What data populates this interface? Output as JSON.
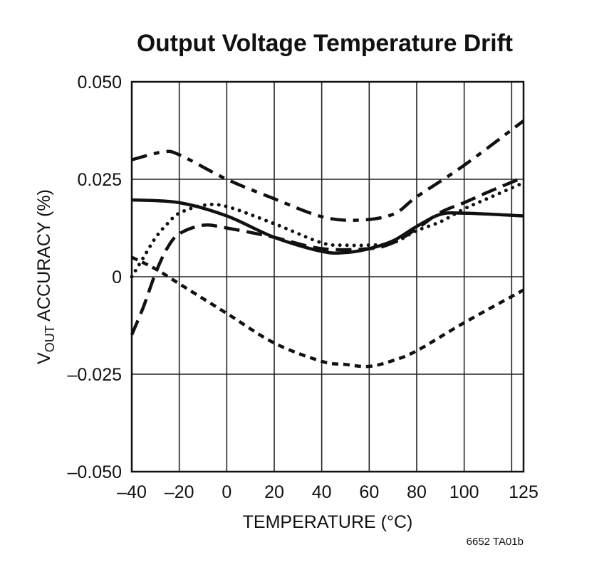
{
  "chart_data": {
    "type": "line",
    "title": "Output Voltage Temperature Drift",
    "xlabel": "TEMPERATURE (°C)",
    "ylabel_main": "V",
    "ylabel_sub": "OUT",
    "ylabel_rest": " ACCURACY (%)",
    "xlim": [
      -40,
      125
    ],
    "ylim": [
      -0.05,
      0.05
    ],
    "grid": true,
    "x_ticks": [
      -40,
      -20,
      0,
      20,
      40,
      60,
      80,
      100,
      125
    ],
    "x_tick_labels": [
      "–40",
      "–20",
      "0",
      "20",
      "40",
      "60",
      "80",
      "100",
      "125"
    ],
    "y_ticks": [
      0.05,
      0.025,
      0,
      -0.025,
      -0.05
    ],
    "y_tick_labels": [
      "0.050",
      "0.025",
      "0",
      "–0.025",
      "–0.050"
    ],
    "series": [
      {
        "style": "dash-dot",
        "x": [
          -40,
          -27,
          -20,
          0,
          20,
          40,
          55,
          70,
          80,
          100,
          125
        ],
        "y": [
          0.03,
          0.032,
          0.0313,
          0.025,
          0.02,
          0.0154,
          0.0145,
          0.016,
          0.0205,
          0.0286,
          0.04
        ]
      },
      {
        "style": "solid",
        "x": [
          -40,
          -20,
          0,
          20,
          40,
          50,
          60,
          70,
          80,
          90,
          100,
          125
        ],
        "y": [
          0.0197,
          0.019,
          0.0156,
          0.0101,
          0.0065,
          0.0062,
          0.0072,
          0.0092,
          0.0129,
          0.016,
          0.0163,
          0.0156
        ]
      },
      {
        "style": "dotted",
        "x": [
          -40,
          -35,
          -30,
          -25,
          -20,
          -10,
          0,
          20,
          40,
          50,
          60,
          70,
          80,
          90,
          100,
          110,
          125
        ],
        "y": [
          0.0,
          0.005,
          0.01,
          0.0136,
          0.0163,
          0.0183,
          0.018,
          0.0136,
          0.0087,
          0.0081,
          0.0081,
          0.0087,
          0.0118,
          0.0141,
          0.0174,
          0.0201,
          0.0241
        ]
      },
      {
        "style": "long-dash",
        "x": [
          -40,
          -35,
          -30,
          -25,
          -20,
          -10,
          0,
          20,
          40,
          60,
          70,
          80,
          90,
          100,
          110,
          125
        ],
        "y": [
          -0.0149,
          -0.0076,
          0.0009,
          0.0074,
          0.011,
          0.0132,
          0.0125,
          0.0101,
          0.0072,
          0.0072,
          0.0087,
          0.0123,
          0.0165,
          0.019,
          0.0217,
          0.0255
        ]
      },
      {
        "style": "short-dash",
        "x": [
          -40,
          -30,
          -20,
          0,
          20,
          40,
          50,
          60,
          70,
          80,
          100,
          125
        ],
        "y": [
          0.005,
          0.002,
          -0.0018,
          -0.0094,
          -0.017,
          -0.0217,
          -0.0225,
          -0.023,
          -0.0215,
          -0.019,
          -0.0118,
          -0.0034
        ]
      }
    ]
  },
  "footnote": "6652 TA01b"
}
